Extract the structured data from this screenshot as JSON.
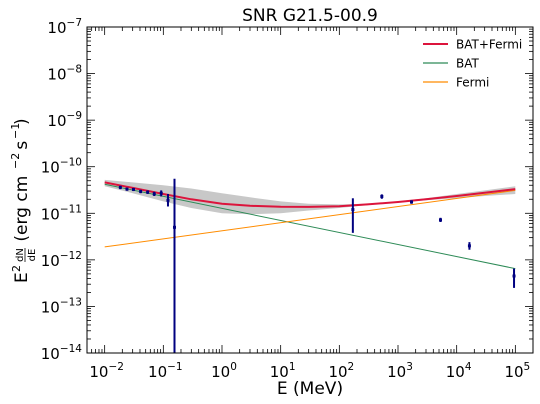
{
  "chart_data": {
    "type": "line",
    "title": "SNR G21.5-00.9",
    "xlabel": "E (MeV)",
    "ylabel": {
      "prefix": "E",
      "exp2": "2",
      "frac_num": "dN",
      "frac_den": "dE",
      "unit_open": " (erg cm",
      "exp_m2": "−2",
      "unit_mid": " s",
      "exp_m1": "−1",
      "unit_close": ")"
    },
    "x_scale": "log",
    "y_scale": "log",
    "xlim": [
      0.005,
      200000
    ],
    "ylim": [
      1e-14,
      1e-07
    ],
    "x_ticks": [
      {
        "value": 0.01,
        "base": "10",
        "exp": "−2"
      },
      {
        "value": 0.1,
        "base": "10",
        "exp": "−1"
      },
      {
        "value": 1,
        "base": "10",
        "exp": "0"
      },
      {
        "value": 10,
        "base": "10",
        "exp": "1"
      },
      {
        "value": 100,
        "base": "10",
        "exp": "2"
      },
      {
        "value": 1000,
        "base": "10",
        "exp": "3"
      },
      {
        "value": 10000,
        "base": "10",
        "exp": "4"
      },
      {
        "value": 100000,
        "base": "10",
        "exp": "5"
      }
    ],
    "y_ticks": [
      {
        "value": 1e-14,
        "base": "10",
        "exp": "−14"
      },
      {
        "value": 1e-13,
        "base": "10",
        "exp": "−13"
      },
      {
        "value": 1e-12,
        "base": "10",
        "exp": "−12"
      },
      {
        "value": 1e-11,
        "base": "10",
        "exp": "−11"
      },
      {
        "value": 1e-10,
        "base": "10",
        "exp": "−10"
      },
      {
        "value": 1e-09,
        "base": "10",
        "exp": "−9"
      },
      {
        "value": 1e-08,
        "base": "10",
        "exp": "−8"
      },
      {
        "value": 1e-07,
        "base": "10",
        "exp": "−7"
      }
    ],
    "grid": false,
    "legend_position": "top-right",
    "series": [
      {
        "name": "BAT+Fermi",
        "color": "#dc143c",
        "x": [
          0.01,
          0.03,
          0.1,
          0.3,
          1,
          3,
          10,
          30,
          100,
          300,
          1000,
          3000,
          10000,
          30000,
          100000
        ],
        "y": [
          4.6e-11,
          3.5e-11,
          2.6e-11,
          2e-11,
          1.6e-11,
          1.45e-11,
          1.38e-11,
          1.37e-11,
          1.42e-11,
          1.55e-11,
          1.75e-11,
          2e-11,
          2.35e-11,
          2.75e-11,
          3.3e-11
        ]
      },
      {
        "name": "BAT",
        "color": "#2e8b57",
        "x": [
          0.01,
          100000
        ],
        "y": [
          4.2e-11,
          6.5e-13
        ]
      },
      {
        "name": "Fermi",
        "color": "#ff8c00",
        "x": [
          0.01,
          100000
        ],
        "y": [
          1.9e-12,
          3.1e-11
        ]
      }
    ],
    "band": {
      "color": "#c8c8c8",
      "x": [
        0.01,
        0.03,
        0.1,
        0.3,
        1,
        3,
        10,
        30,
        100,
        300,
        1000,
        3000,
        10000,
        30000,
        100000
      ],
      "low": [
        3.8e-11,
        2.7e-11,
        1.8e-11,
        1.3e-11,
        1e-11,
        9.5e-12,
        1e-11,
        1.15e-11,
        1.3e-11,
        1.5e-11,
        1.7e-11,
        1.9e-11,
        2.1e-11,
        2.35e-11,
        2.6e-11
      ],
      "high": [
        5.2e-11,
        4.6e-11,
        4e-11,
        3.4e-11,
        2.7e-11,
        2.2e-11,
        1.8e-11,
        1.6e-11,
        1.55e-11,
        1.6e-11,
        1.8e-11,
        2.1e-11,
        2.6e-11,
        3.1e-11,
        3.8e-11
      ]
    },
    "data_points": {
      "color": "#000080",
      "points": [
        {
          "x": 0.0185,
          "y": 3.6e-11,
          "ylo": 3.3e-11,
          "yhi": 3.9e-11
        },
        {
          "x": 0.024,
          "y": 3.3e-11,
          "ylo": 3.05e-11,
          "yhi": 3.55e-11
        },
        {
          "x": 0.031,
          "y": 3.25e-11,
          "ylo": 3e-11,
          "yhi": 3.5e-11
        },
        {
          "x": 0.041,
          "y": 2.95e-11,
          "ylo": 2.7e-11,
          "yhi": 3.2e-11
        },
        {
          "x": 0.054,
          "y": 2.85e-11,
          "ylo": 2.6e-11,
          "yhi": 3.1e-11
        },
        {
          "x": 0.07,
          "y": 2.6e-11,
          "ylo": 2.35e-11,
          "yhi": 2.9e-11
        },
        {
          "x": 0.092,
          "y": 2.7e-11,
          "ylo": 2.3e-11,
          "yhi": 3.1e-11
        },
        {
          "x": 0.12,
          "y": 1.9e-11,
          "ylo": 1.4e-11,
          "yhi": 2.6e-11
        },
        {
          "x": 0.155,
          "y": 5e-12,
          "ylo": 1e-14,
          "yhi": 5.5e-11
        },
        {
          "x": 170,
          "y": 1.2e-11,
          "ylo": 3.8e-12,
          "yhi": 2.1e-11
        },
        {
          "x": 530,
          "y": 2.3e-11,
          "ylo": 2.05e-11,
          "yhi": 2.55e-11
        },
        {
          "x": 1700,
          "y": 1.75e-11,
          "ylo": 1.6e-11,
          "yhi": 1.9e-11
        },
        {
          "x": 5300,
          "y": 7.2e-12,
          "ylo": 6.5e-12,
          "yhi": 8e-12
        },
        {
          "x": 16500,
          "y": 2e-12,
          "ylo": 1.65e-12,
          "yhi": 2.4e-12
        },
        {
          "x": 95000,
          "y": 4.5e-13,
          "ylo": 2.5e-13,
          "yhi": 6.5e-13
        }
      ]
    }
  }
}
